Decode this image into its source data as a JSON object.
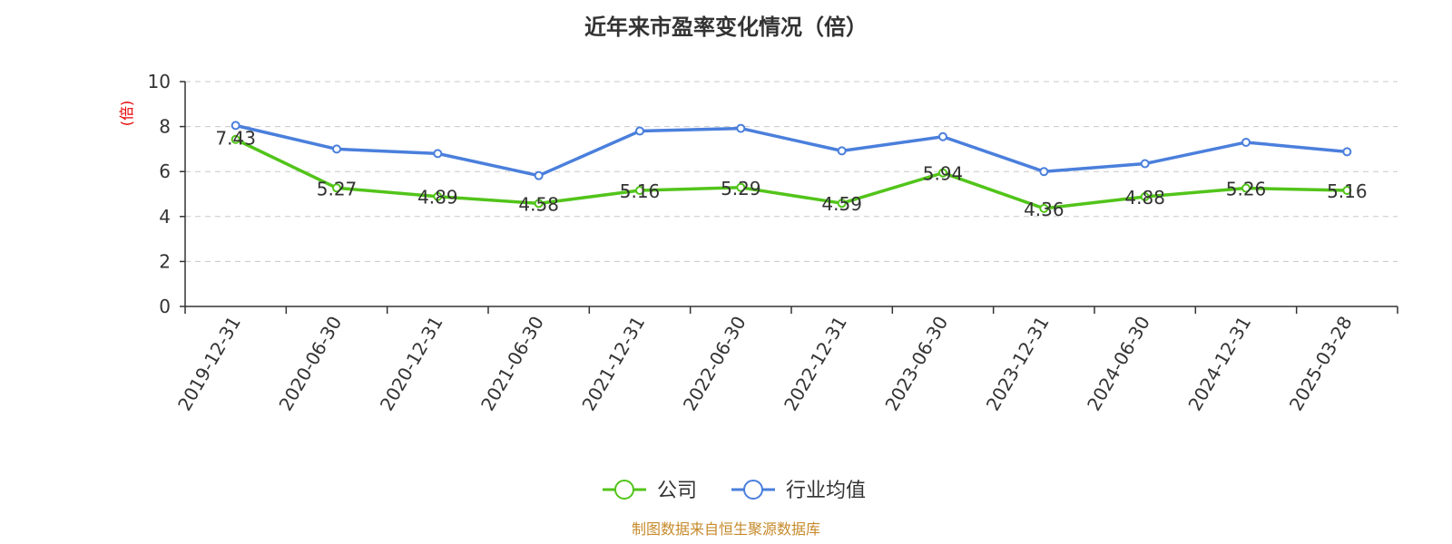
{
  "chart_data": {
    "type": "line",
    "title": "近年来市盈率变化情况（倍）",
    "ylabel": "(倍)",
    "xlabel": "",
    "ylim": [
      0,
      10
    ],
    "yticks": [
      "0",
      "2",
      "4",
      "6",
      "8",
      "10"
    ],
    "categories": [
      "2019-12-31",
      "2020-06-30",
      "2020-12-31",
      "2021-06-30",
      "2021-12-31",
      "2022-06-30",
      "2022-12-31",
      "2023-06-30",
      "2023-12-31",
      "2024-06-30",
      "2024-12-31",
      "2025-03-28"
    ],
    "series": [
      {
        "name": "公司",
        "color": "#52c41a",
        "values": [
          7.43,
          5.27,
          4.89,
          4.58,
          5.16,
          5.29,
          4.59,
          5.94,
          4.36,
          4.88,
          5.26,
          5.16
        ],
        "labels": [
          "7.43",
          "5.27",
          "4.89",
          "4.58",
          "5.16",
          "5.29",
          "4.59",
          "5.94",
          "4.36",
          "4.88",
          "5.26",
          "5.16"
        ]
      },
      {
        "name": "行业均值",
        "color": "#4a7fdc",
        "values": [
          8.05,
          7.0,
          6.8,
          5.82,
          7.8,
          7.92,
          6.92,
          7.55,
          6.0,
          6.35,
          7.3,
          6.88
        ]
      }
    ],
    "grid": true,
    "legend": "bottom-center",
    "source": "制图数据来自恒生聚源数据库"
  }
}
